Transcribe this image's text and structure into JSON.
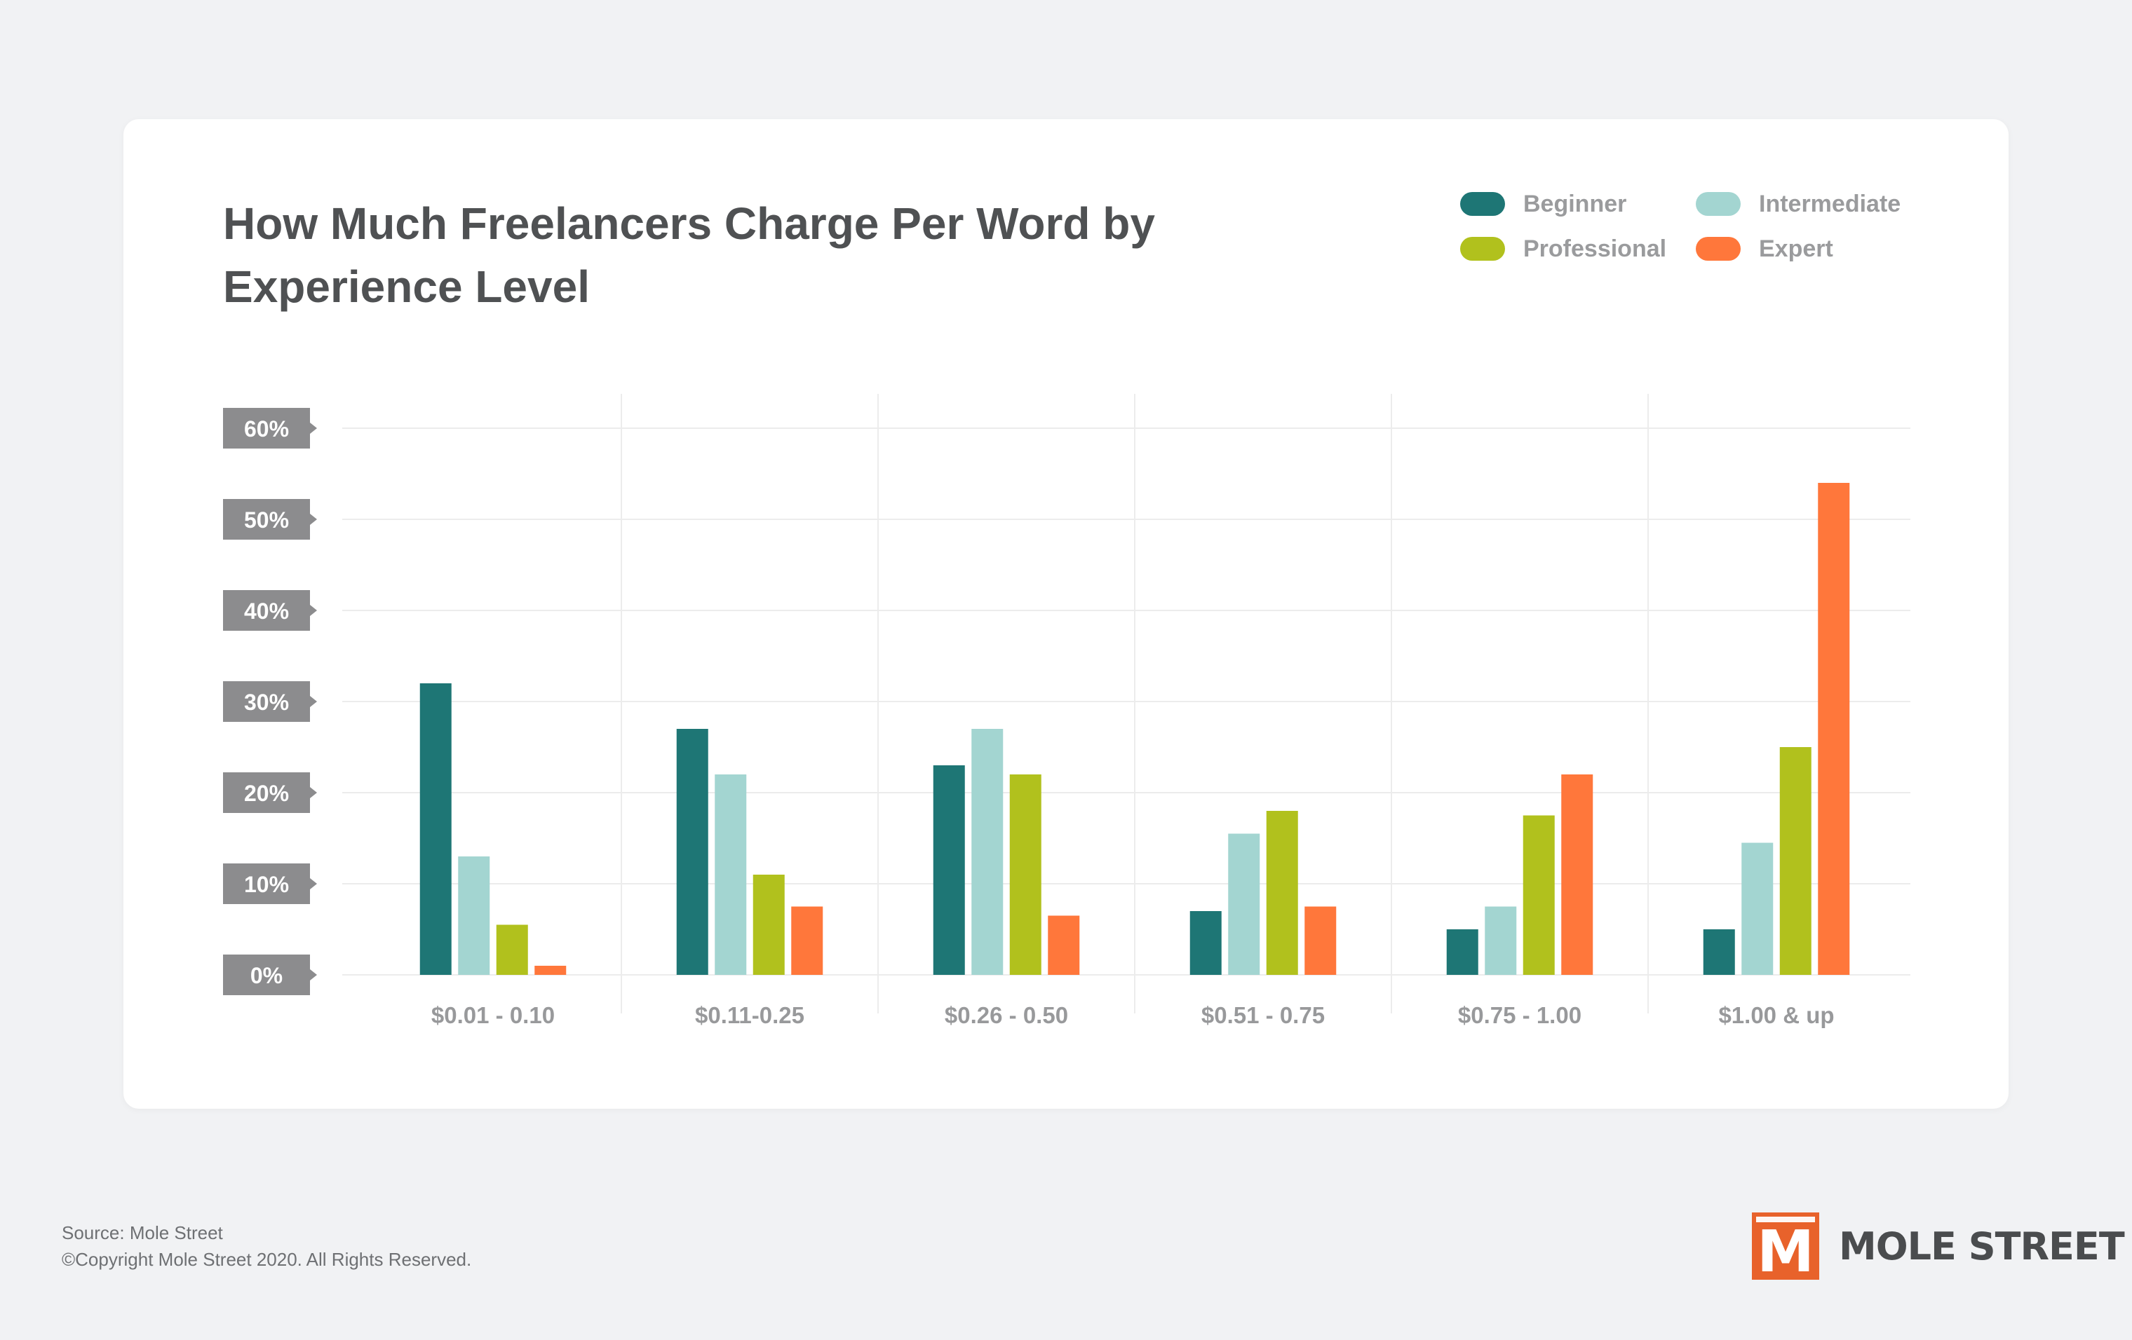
{
  "colors": {
    "background": "#f1f2f4",
    "card": "#ffffff",
    "grid": "#ececec",
    "tick_badge": "#8c8c8e",
    "category_label": "#98999b",
    "brand_orange": "#e8622b"
  },
  "footer": {
    "source": "Source: Mole Street",
    "copyright": "©Copyright Mole Street 2020. All Rights Reserved."
  },
  "brand": {
    "logo_letter": "M",
    "name": "MOLE STREET"
  },
  "chart_data": {
    "type": "bar",
    "title": "How Much Freelancers Charge Per Word by Experience Level",
    "xlabel": "",
    "ylabel": "",
    "ylim": [
      0,
      60
    ],
    "yticks": [
      0,
      10,
      20,
      30,
      40,
      50,
      60
    ],
    "ytick_labels": [
      "0%",
      "10%",
      "20%",
      "30%",
      "40%",
      "50%",
      "60%"
    ],
    "categories": [
      "$0.01 - 0.10",
      "$0.11-0.25",
      "$0.26 - 0.50",
      "$0.51 - 0.75",
      "$0.75 - 1.00",
      "$1.00 & up"
    ],
    "series": [
      {
        "name": "Beginner",
        "color": "#1e7675",
        "values": [
          32,
          27,
          23,
          7,
          5,
          5
        ]
      },
      {
        "name": "Intermediate",
        "color": "#a3d5d1",
        "values": [
          13,
          22,
          27,
          15.5,
          7.5,
          14.5
        ]
      },
      {
        "name": "Professional",
        "color": "#b1c11d",
        "values": [
          5.5,
          11,
          22,
          18,
          17.5,
          25
        ]
      },
      {
        "name": "Expert",
        "color": "#ff773b",
        "values": [
          1,
          7.5,
          6.5,
          7.5,
          22,
          54
        ]
      }
    ],
    "legend_position": "top-right",
    "grid": true
  }
}
